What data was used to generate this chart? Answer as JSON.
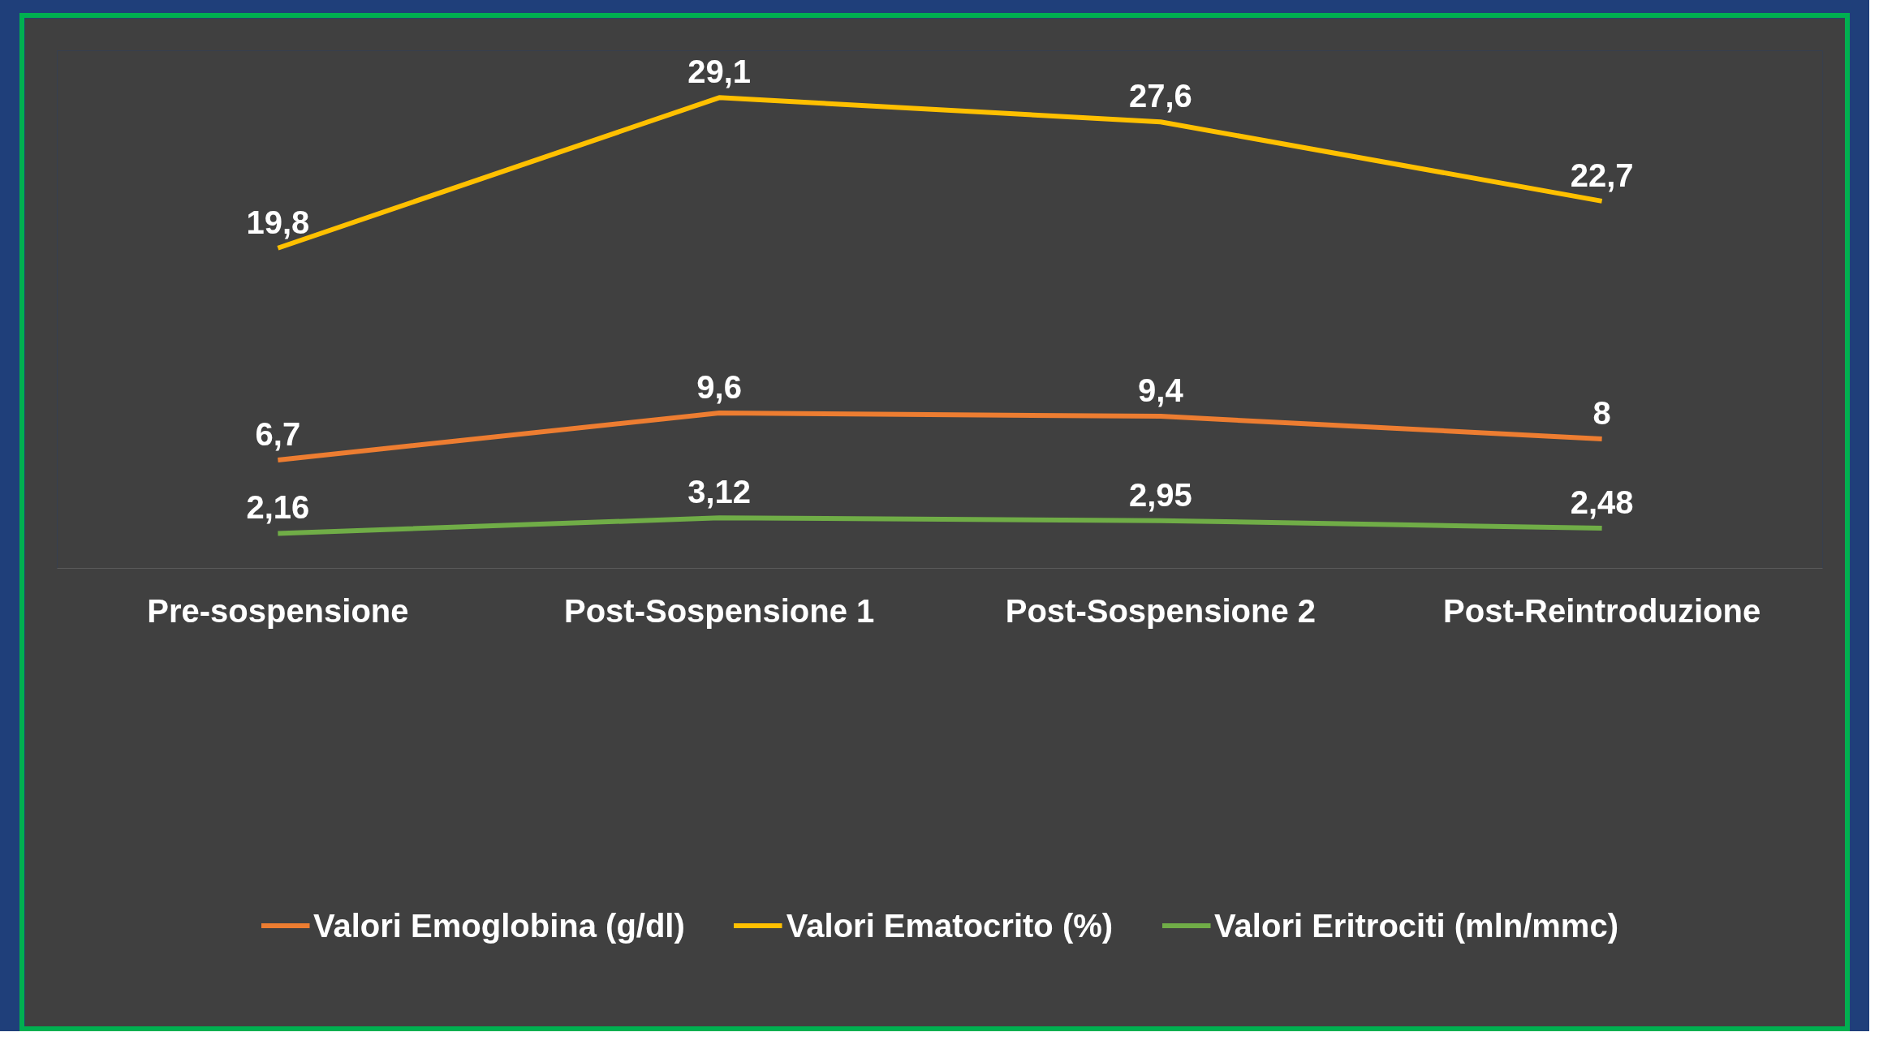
{
  "chart_data": {
    "type": "line",
    "categories": [
      "Pre-sospensione",
      "Post-Sospensione 1",
      "Post-Sospensione 2",
      "Post-Reintroduzione"
    ],
    "series": [
      {
        "name": "Valori Emoglobina (g/dl)",
        "color": "#ed7d31",
        "values": [
          6.7,
          9.6,
          9.4,
          8
        ],
        "value_labels": [
          "6,7",
          "9,6",
          "9,4",
          "8"
        ]
      },
      {
        "name": "Valori Ematocrito (%)",
        "color": "#ffc000",
        "values": [
          19.8,
          29.1,
          27.6,
          22.7
        ],
        "value_labels": [
          "19,8",
          "29,1",
          "27,6",
          "22,7"
        ]
      },
      {
        "name": "Valori Eritrociti (mln/mmc)",
        "color": "#70ad47",
        "values": [
          2.16,
          3.12,
          2.95,
          2.48
        ],
        "value_labels": [
          "2,16",
          "3,12",
          "2,95",
          "2,48"
        ]
      }
    ],
    "ylim": [
      0,
      32
    ],
    "tick_labels": "x",
    "legend": "bottom",
    "grid": false,
    "marker": "none",
    "line_style": "solid"
  }
}
